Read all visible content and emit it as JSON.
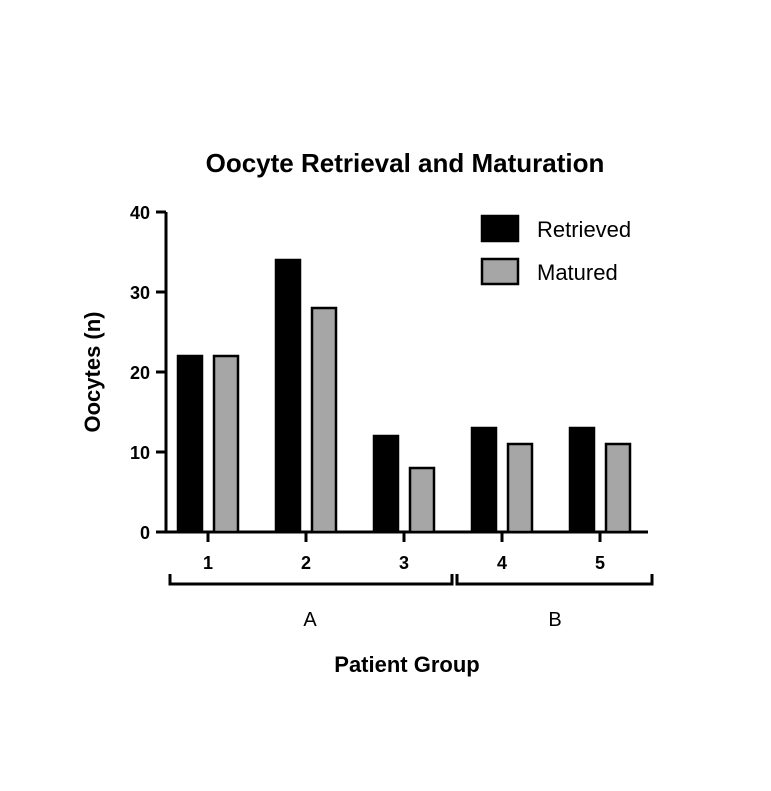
{
  "chart_data": {
    "type": "bar",
    "title": "Oocyte Retrieval and Maturation",
    "xlabel": "Patient Group",
    "ylabel": "Oocytes (n)",
    "ylim": [
      0,
      40
    ],
    "yticks": [
      "0",
      "10",
      "20",
      "30",
      "40"
    ],
    "categories": [
      "1",
      "2",
      "3",
      "4",
      "5"
    ],
    "groups": [
      {
        "label": "A",
        "categories": [
          "1",
          "2",
          "3"
        ]
      },
      {
        "label": "B",
        "categories": [
          "4",
          "5"
        ]
      }
    ],
    "series": [
      {
        "name": "Retrieved",
        "values": [
          22,
          34,
          12,
          13,
          13
        ],
        "color": "#000000"
      },
      {
        "name": "Matured",
        "values": [
          22,
          28,
          8,
          11,
          11
        ],
        "color": "#a6a6a6"
      }
    ],
    "legend": "top-right",
    "grid": false
  }
}
